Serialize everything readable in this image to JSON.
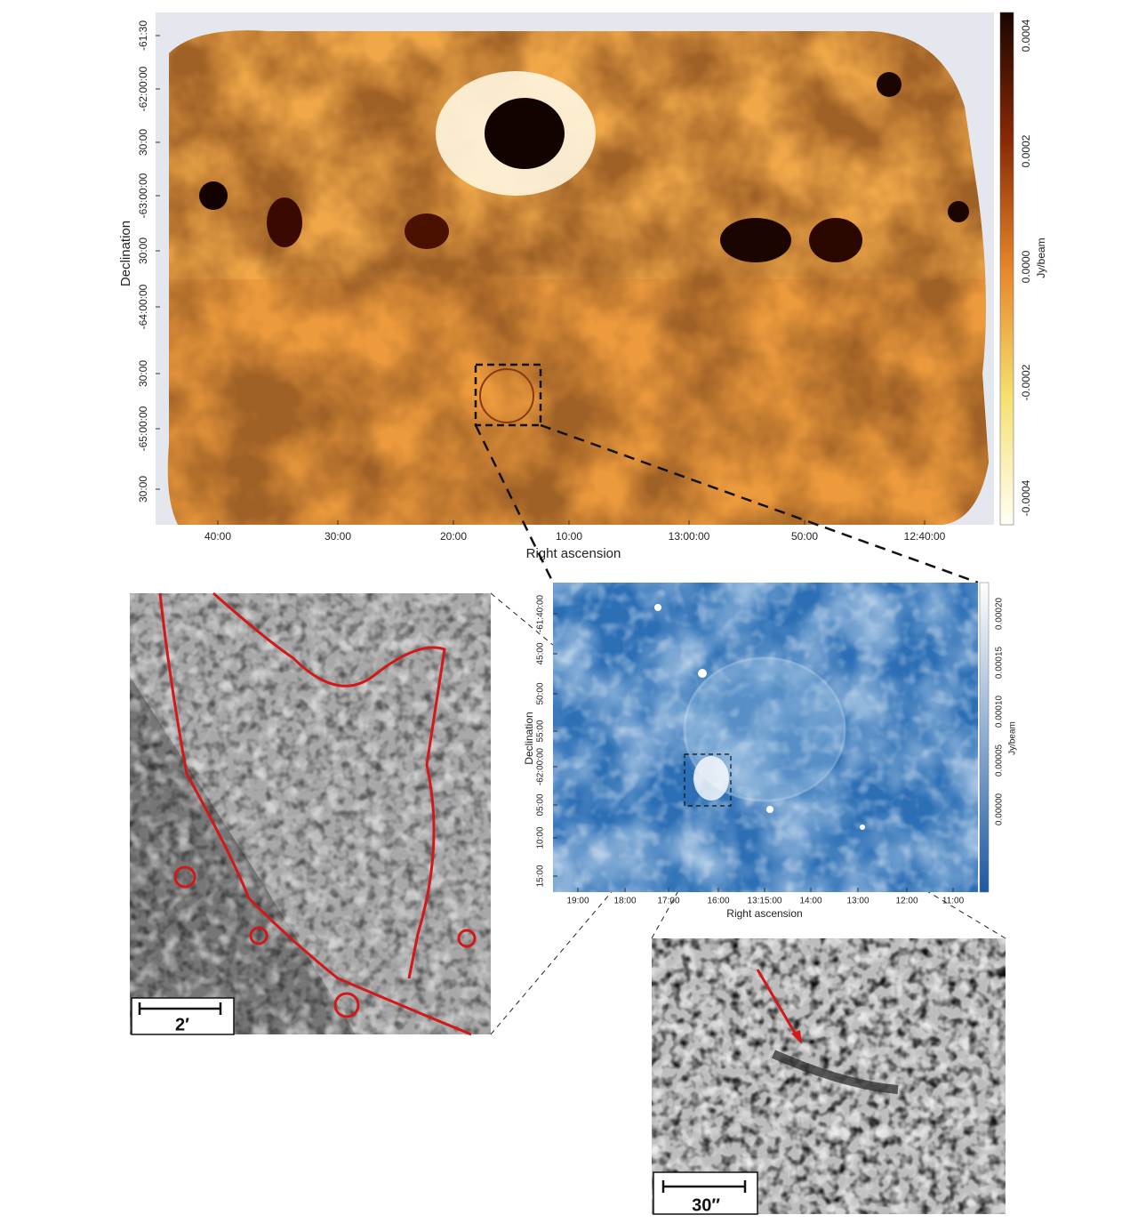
{
  "main_map": {
    "x_label": "Right ascension",
    "y_label": "Declination",
    "x_ticks": [
      "40:00",
      "30:00",
      "20:00",
      "10:00",
      "13:00:00",
      "50:00",
      "12:40:00"
    ],
    "y_ticks": [
      "-61:30",
      "-62:00:00",
      "30:00",
      "-63:00:00",
      "30:00",
      "-64:00:00",
      "30:00",
      "-65:00:00",
      "30:00"
    ],
    "colorbar": {
      "label": "Jy/beam",
      "ticks": [
        "0.0004",
        "0.0002",
        "0.0000",
        "-0.0002",
        "-0.0004"
      ]
    }
  },
  "inset_map": {
    "x_label": "Right ascension",
    "y_label": "Declination",
    "x_ticks": [
      "19:00",
      "18:00",
      "17:00",
      "16:00",
      "13:15:00",
      "14:00",
      "13:00",
      "12:00",
      "11:00"
    ],
    "y_ticks": [
      "-61:40:00",
      "45:00",
      "50:00",
      "55:00",
      "-62:00:00",
      "05:00",
      "10:00",
      "15:00"
    ],
    "colorbar": {
      "label": "Jy/beam",
      "ticks": [
        "0.00020",
        "0.00015",
        "0.00010",
        "0.00005",
        "0.00000"
      ]
    }
  },
  "zoom_left": {
    "scale_bar": "2′"
  },
  "zoom_right": {
    "scale_bar": "30″"
  }
}
